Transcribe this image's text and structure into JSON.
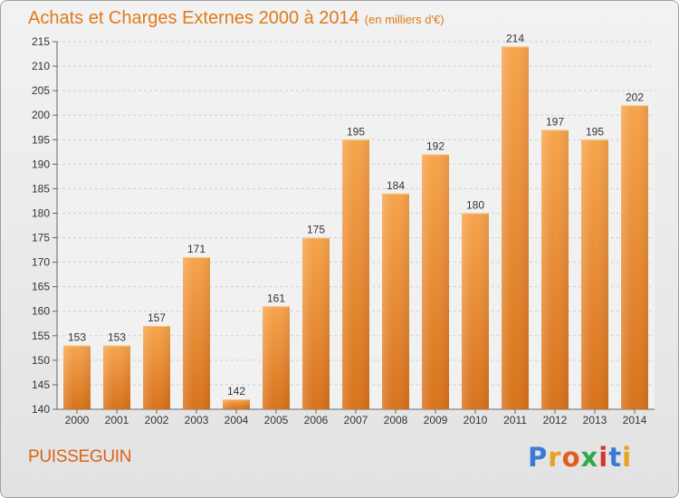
{
  "title": "Achats et Charges Externes 2000 à 2014",
  "subtitle": "(en milliers d'€)",
  "location": "PUISSEGUIN",
  "brand": {
    "letters": [
      "P",
      "r",
      "o",
      "x",
      "i",
      "t",
      "i"
    ],
    "colors": [
      "#3a7bd5",
      "#e8a01e",
      "#e35b1e",
      "#2da84a",
      "#d8332a",
      "#3a7bd5",
      "#e8a01e"
    ]
  },
  "colors": {
    "bar_top": "#f7a44c",
    "bar_bottom": "#d8721c",
    "title": "#e07a1a",
    "grid": "#d0d0d0"
  },
  "chart_data": {
    "type": "bar",
    "categories": [
      "2000",
      "2001",
      "2002",
      "2003",
      "2004",
      "2005",
      "2006",
      "2007",
      "2008",
      "2009",
      "2010",
      "2011",
      "2012",
      "2013",
      "2014"
    ],
    "values": [
      153,
      153,
      157,
      171,
      142,
      161,
      175,
      195,
      184,
      192,
      180,
      214,
      197,
      195,
      202
    ],
    "ylim": [
      140,
      215
    ],
    "yticks": [
      140,
      145,
      150,
      155,
      160,
      165,
      170,
      175,
      180,
      185,
      190,
      195,
      200,
      205,
      210,
      215
    ],
    "grid": true,
    "data_labels": true,
    "legend": "none"
  }
}
